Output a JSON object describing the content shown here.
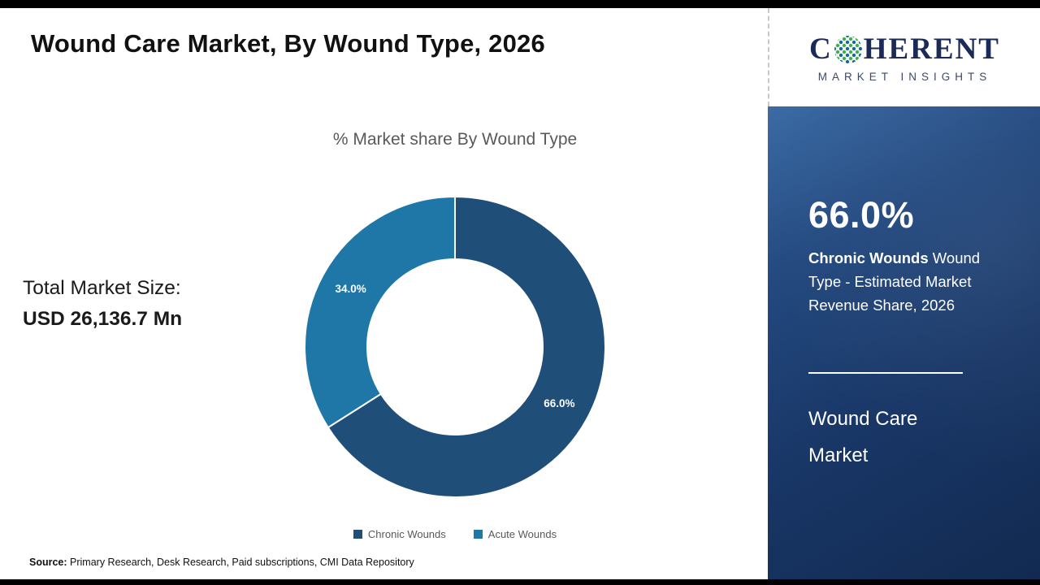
{
  "page": {
    "title": "Wound Care Market, By Wound Type, 2026",
    "total_market_label": "Total Market Size:",
    "total_market_value": "USD 26,136.7 Mn",
    "source_label": "Source:",
    "source_text": " Primary Research, Desk Research, Paid subscriptions, CMI Data Repository"
  },
  "logo": {
    "word_start": "C",
    "word_end": "HERENT",
    "subtitle": "MARKET INSIGHTS"
  },
  "sidebar": {
    "highlight_value": "66.0%",
    "highlight_bold": "Chronic Wounds",
    "highlight_rest": " Wound Type - Estimated Market Revenue Share, 2026",
    "footer_title": "Wound Care Market"
  },
  "chart_data": {
    "type": "pie",
    "donut": true,
    "title": "% Market share By Wound Type",
    "categories": [
      "Chronic Wounds",
      "Acute Wounds"
    ],
    "values": [
      66.0,
      34.0
    ],
    "labels": [
      "66.0%",
      "34.0%"
    ],
    "colors": [
      "#1F4E79",
      "#1F77A8"
    ],
    "legend_position": "bottom",
    "start_angle_deg": 0,
    "direction": "clockwise",
    "total_market_size": "USD 26,136.7 Mn",
    "year": "2026"
  }
}
